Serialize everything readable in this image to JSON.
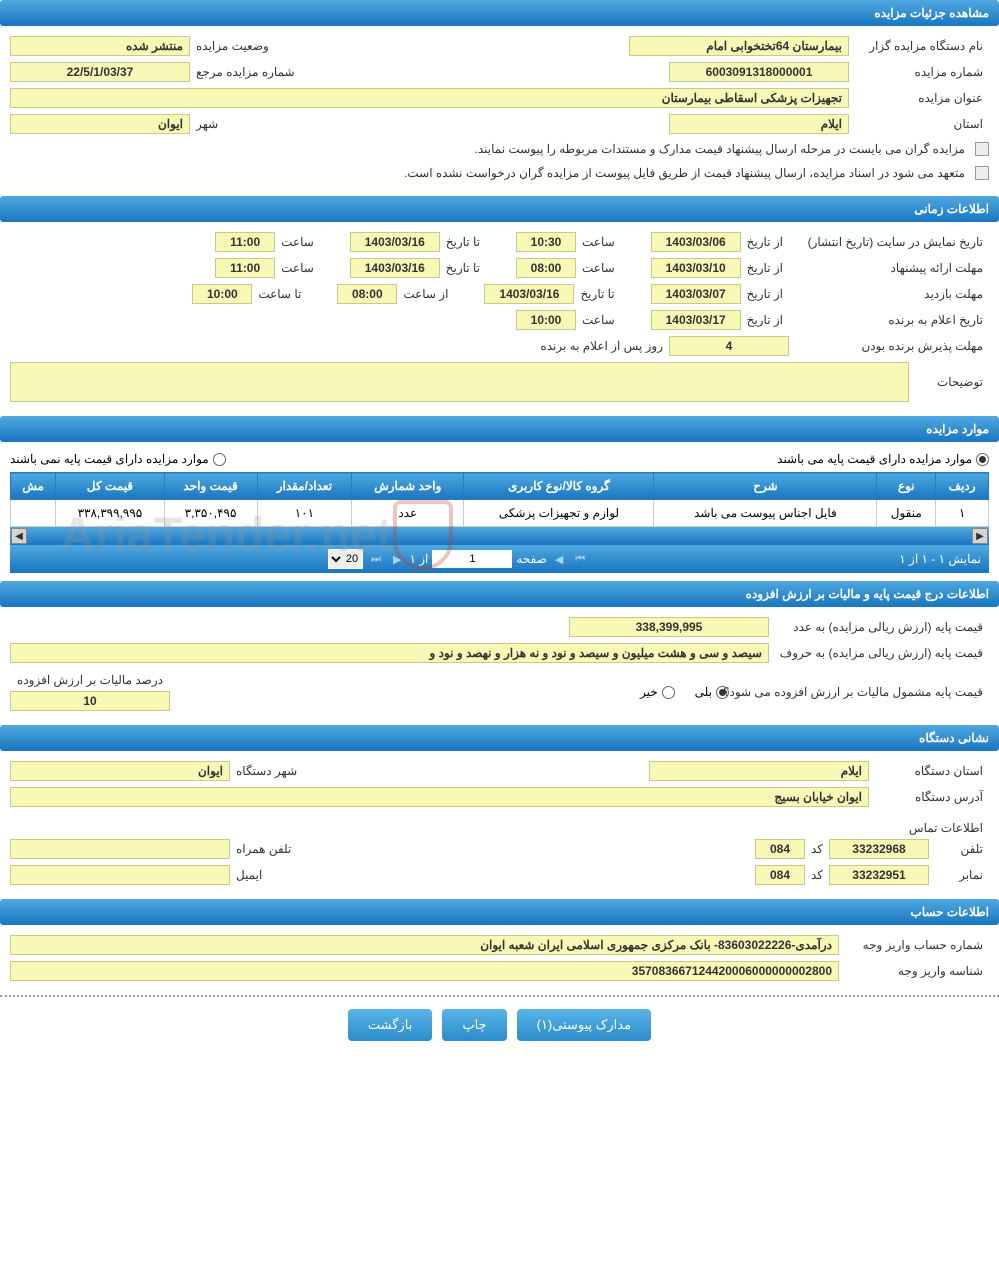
{
  "sections": {
    "details": {
      "header": "مشاهده جزئیات مزایده",
      "org_label": "نام دستگاه مزایده گزار",
      "org_value": "بیمارستان 64تختخوابی امام",
      "status_label": "وضعیت مزایده",
      "status_value": "منتشر شده",
      "auction_no_label": "شماره مزایده",
      "auction_no_value": "6003091318000001",
      "ref_no_label": "شماره مزایده مرجع",
      "ref_no_value": "22/5/1/03/37",
      "title_label": "عنوان مزایده",
      "title_value": "تجهیزات پزشکی اسقاطی بیمارستان",
      "province_label": "استان",
      "province_value": "ایلام",
      "city_label": "شهر",
      "city_value": "ایوان",
      "note1": "مزایده گران می بایست در مرحله ارسال پیشنهاد قیمت مدارک و مستندات مربوطه را پیوست نمایند.",
      "note2": "متعهد می شود در اسناد مزایده، ارسال پیشنهاد قیمت از طریق فایل پیوست از مزایده گران درخواست نشده است."
    },
    "timing": {
      "header": "اطلاعات زمانی",
      "publish_label": "تاریخ نمایش در سایت (تاریخ انتشار)",
      "from_date_label": "از تاریخ",
      "to_date_label": "تا تاریخ",
      "saat_label": "ساعت",
      "az_saat_label": "از ساعت",
      "ta_saat_label": "تا ساعت",
      "publish_from_date": "1403/03/06",
      "publish_from_time": "10:30",
      "publish_to_date": "1403/03/16",
      "publish_to_time": "11:00",
      "proposal_label": "مهلت ارائه پیشنهاد",
      "proposal_from_date": "1403/03/10",
      "proposal_from_time": "08:00",
      "proposal_to_date": "1403/03/16",
      "proposal_to_time": "11:00",
      "visit_label": "مهلت بازدید",
      "visit_from_date": "1403/03/07",
      "visit_to_date": "1403/03/16",
      "visit_from_time": "08:00",
      "visit_to_time": "10:00",
      "announce_label": "تاریخ اعلام به برنده",
      "announce_date": "1403/03/17",
      "announce_time": "10:00",
      "acceptance_label": "مهلت پذیرش برنده بودن",
      "acceptance_days": "4",
      "acceptance_suffix": "روز پس از اعلام به برنده",
      "notes_label": "توضیحات"
    },
    "items": {
      "header": "موارد مزایده",
      "has_base_label": "موارد مزایده دارای قیمت پایه می باشند",
      "no_base_label": "موارد مزایده دارای قیمت پایه نمی باشند",
      "columns": [
        "ردیف",
        "نوع",
        "شرح",
        "گروه کالا/نوع کاربری",
        "واحد شمارش",
        "تعداد/مقدار",
        "قیمت واحد",
        "قیمت کل",
        "مش"
      ],
      "rows": [
        {
          "idx": "۱",
          "type": "منقول",
          "desc": "فایل اجناس پیوست می باشد",
          "group": "لوازم و تجهیزات پزشکی",
          "unit": "عدد",
          "qty": "۱۰۱",
          "unit_price": "۳,۳۵۰,۴۹۵",
          "total": "۳۳۸,۳۹۹,۹۹۵"
        }
      ],
      "pager_display": "نمایش ۱ - ۱ از ۱",
      "pager_page_label": "صفحه",
      "pager_page_value": "1",
      "pager_of": "از ۱",
      "pager_size": "20"
    },
    "price": {
      "header": "اطلاعات درج قیمت پایه و مالیات بر ارزش افزوده",
      "base_num_label": "قیمت پایه (ارزش ریالی مزایده) به عدد",
      "base_num_value": "338,399,995",
      "base_word_label": "قیمت پایه (ارزش ریالی مزایده) به حروف",
      "base_word_value": "سیصد و سی و هشت میلیون و سیصد و نود و نه هزار و نهصد و نود و",
      "vat_q_label": "قیمت پایه مشمول مالیات بر ارزش افزوده می شود؟",
      "yes": "بلی",
      "no": "خیر",
      "vat_pct_label": "درصد مالیات بر ارزش افزوده",
      "vat_pct_value": "10"
    },
    "address": {
      "header": "نشانی دستگاه",
      "province_label": "استان دستگاه",
      "province_value": "ایلام",
      "city_label": "شهر دستگاه",
      "city_value": "ایوان",
      "address_label": "آدرس دستگاه",
      "address_value": "ایوان خیابان بسیج",
      "contact_title": "اطلاعات تماس",
      "phone_label": "تلفن",
      "phone_value": "33232968",
      "code_label": "کد",
      "phone_code": "084",
      "mobile_label": "تلفن همراه",
      "fax_label": "نمابر",
      "fax_value": "33232951",
      "fax_code": "084",
      "email_label": "ایمیل"
    },
    "account": {
      "header": "اطلاعات حساب",
      "acc_no_label": "شماره حساب واریز وجه",
      "acc_no_value": "درآمدی-83603022226- بانک مرکزی جمهوری اسلامی ایران شعبه ایوان",
      "pay_id_label": "شناسه واریز وجه",
      "pay_id_value": "357083667124420006000000002800"
    }
  },
  "buttons": {
    "docs": "مدارک پیوستی(۱)",
    "print": "چاپ",
    "back": "بازگشت"
  },
  "colors": {
    "header_grad_top": "#4fa8e0",
    "header_grad_bottom": "#1976c0",
    "value_bg": "#f7f7b6",
    "value_border": "#c9c98a"
  },
  "watermark": "AriaTender.net"
}
